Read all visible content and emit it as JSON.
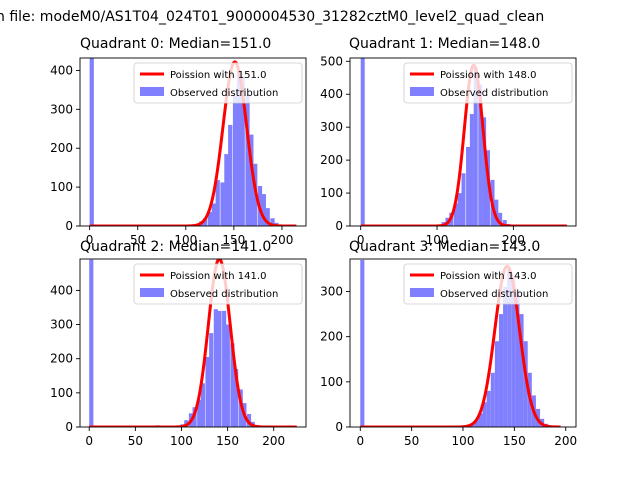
{
  "suptitle": "n file: modeM0/AS1T04_024T01_9000004530_31282cztM0_level2_quad_clean",
  "colors": {
    "hist": "#8080ff",
    "model": "#ff0000",
    "axis": "#000000",
    "background": "#ffffff",
    "legend_edge": "#cccccc"
  },
  "chart_data": [
    {
      "type": "bar",
      "title": "Quadrant 0: Median=151.0",
      "legend": [
        "Poission with 151.0",
        "Observed distribution"
      ],
      "legend_loc": "upper right",
      "xlim": [
        -10,
        225
      ],
      "ylim": [
        0,
        432
      ],
      "xticks": [
        0,
        50,
        100,
        150,
        200
      ],
      "yticks": [
        0,
        100,
        200,
        300,
        400
      ],
      "xtick_labels_shown": true,
      "median": 151.0,
      "model_peak": 422,
      "model_sigma": 12.3,
      "model_xrange": [
        0,
        215
      ],
      "bin_width": 4.4,
      "bins": [
        [
          0,
          432
        ],
        [
          114,
          12
        ],
        [
          118,
          20
        ],
        [
          123,
          36
        ],
        [
          127,
          58
        ],
        [
          131,
          118
        ],
        [
          136,
          112
        ],
        [
          140,
          185
        ],
        [
          144,
          260
        ],
        [
          149,
          335
        ],
        [
          153,
          400
        ],
        [
          157,
          385
        ],
        [
          162,
          335
        ],
        [
          166,
          235
        ],
        [
          170,
          160
        ],
        [
          175,
          103
        ],
        [
          179,
          82
        ],
        [
          183,
          46
        ],
        [
          188,
          20
        ],
        [
          192,
          8
        ],
        [
          196,
          3
        ]
      ]
    },
    {
      "type": "bar",
      "title": "Quadrant 1: Median=148.0",
      "legend": [
        "Poission with 148.0",
        "Observed distribution"
      ],
      "legend_loc": "upper right",
      "xlim": [
        -14,
        282
      ],
      "ylim": [
        0,
        510
      ],
      "xticks": [
        0,
        100,
        200
      ],
      "yticks": [
        0,
        100,
        200,
        300,
        400,
        500
      ],
      "xtick_labels_shown": true,
      "median": 148.0,
      "model_peak": 488,
      "model_sigma": 12.2,
      "model_xrange": [
        0,
        270
      ],
      "bin_width": 5.3,
      "bins": [
        [
          0,
          510
        ],
        [
          106,
          12
        ],
        [
          111,
          25
        ],
        [
          116,
          40
        ],
        [
          122,
          68
        ],
        [
          127,
          100
        ],
        [
          132,
          160
        ],
        [
          138,
          240
        ],
        [
          143,
          340
        ],
        [
          148,
          480
        ],
        [
          154,
          430
        ],
        [
          159,
          330
        ],
        [
          164,
          230
        ],
        [
          170,
          140
        ],
        [
          175,
          80
        ],
        [
          180,
          40
        ],
        [
          186,
          18
        ],
        [
          191,
          6
        ]
      ]
    },
    {
      "type": "bar",
      "title": "Quadrant 2: Median=141.0",
      "legend": [
        "Poission with 141.0",
        "Observed distribution"
      ],
      "legend_loc": "upper right",
      "xlim": [
        -10,
        235
      ],
      "ylim": [
        0,
        492
      ],
      "xticks": [
        0,
        50,
        100,
        150,
        200
      ],
      "yticks": [
        0,
        100,
        200,
        300,
        400
      ],
      "xtick_labels_shown": true,
      "median": 141.0,
      "model_peak": 492,
      "model_sigma": 11.9,
      "model_xrange": [
        0,
        225
      ],
      "bin_width": 4.5,
      "bins": [
        [
          0,
          490
        ],
        [
          72,
          5
        ],
        [
          77,
          3
        ],
        [
          85,
          3
        ],
        [
          99,
          8
        ],
        [
          103,
          20
        ],
        [
          108,
          40
        ],
        [
          112,
          58
        ],
        [
          117,
          80
        ],
        [
          121,
          128
        ],
        [
          126,
          205
        ],
        [
          130,
          275
        ],
        [
          135,
          345
        ],
        [
          139,
          340
        ],
        [
          144,
          340
        ],
        [
          148,
          300
        ],
        [
          153,
          245
        ],
        [
          157,
          170
        ],
        [
          162,
          110
        ],
        [
          166,
          70
        ],
        [
          171,
          38
        ],
        [
          175,
          15
        ],
        [
          180,
          6
        ]
      ]
    },
    {
      "type": "bar",
      "title": "Quadrant 3: Median=143.0",
      "legend": [
        "Poission with 143.0",
        "Observed distribution"
      ],
      "legend_loc": "upper right",
      "xlim": [
        -10,
        210
      ],
      "ylim": [
        0,
        372
      ],
      "xticks": [
        0,
        50,
        100,
        150,
        200
      ],
      "yticks": [
        0,
        100,
        200,
        300
      ],
      "xtick_labels_shown": true,
      "median": 143.0,
      "model_peak": 356,
      "model_sigma": 12.0,
      "model_xrange": [
        0,
        195
      ],
      "bin_width": 4.0,
      "bins": [
        [
          0,
          370
        ],
        [
          107,
          8
        ],
        [
          111,
          15
        ],
        [
          115,
          30
        ],
        [
          119,
          55
        ],
        [
          123,
          80
        ],
        [
          127,
          120
        ],
        [
          131,
          190
        ],
        [
          135,
          250
        ],
        [
          139,
          310
        ],
        [
          143,
          350
        ],
        [
          147,
          330
        ],
        [
          151,
          300
        ],
        [
          155,
          250
        ],
        [
          159,
          190
        ],
        [
          163,
          120
        ],
        [
          167,
          70
        ],
        [
          171,
          40
        ],
        [
          175,
          18
        ],
        [
          179,
          7
        ]
      ]
    }
  ]
}
